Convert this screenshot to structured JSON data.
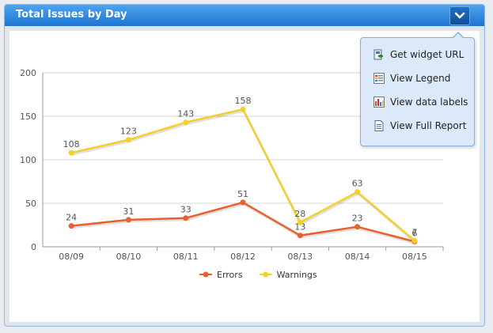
{
  "widget": {
    "title": "Total Issues by Day",
    "menu_button_icon": "chevron-down-icon"
  },
  "menu": {
    "items": [
      {
        "label": "Get widget URL",
        "icon": "widget-url-icon"
      },
      {
        "label": "View Legend",
        "icon": "legend-icon"
      },
      {
        "label": "View data labels",
        "icon": "data-labels-icon"
      },
      {
        "label": "View Full Report",
        "icon": "report-icon"
      }
    ]
  },
  "chart_data": {
    "type": "line",
    "title": "",
    "xlabel": "",
    "ylabel": "",
    "categories": [
      "08/09",
      "08/10",
      "08/11",
      "08/12",
      "08/13",
      "08/14",
      "08/15"
    ],
    "ylim": [
      0,
      200
    ],
    "yticks": [
      0,
      50,
      100,
      150,
      200
    ],
    "grid": true,
    "legend": "bottom",
    "series": [
      {
        "name": "Errors",
        "color": "#e8602c",
        "values": [
          24,
          31,
          33,
          51,
          13,
          23,
          6
        ]
      },
      {
        "name": "Warnings",
        "color": "#f5cf2a",
        "values": [
          108,
          123,
          143,
          158,
          28,
          63,
          7
        ]
      }
    ]
  }
}
